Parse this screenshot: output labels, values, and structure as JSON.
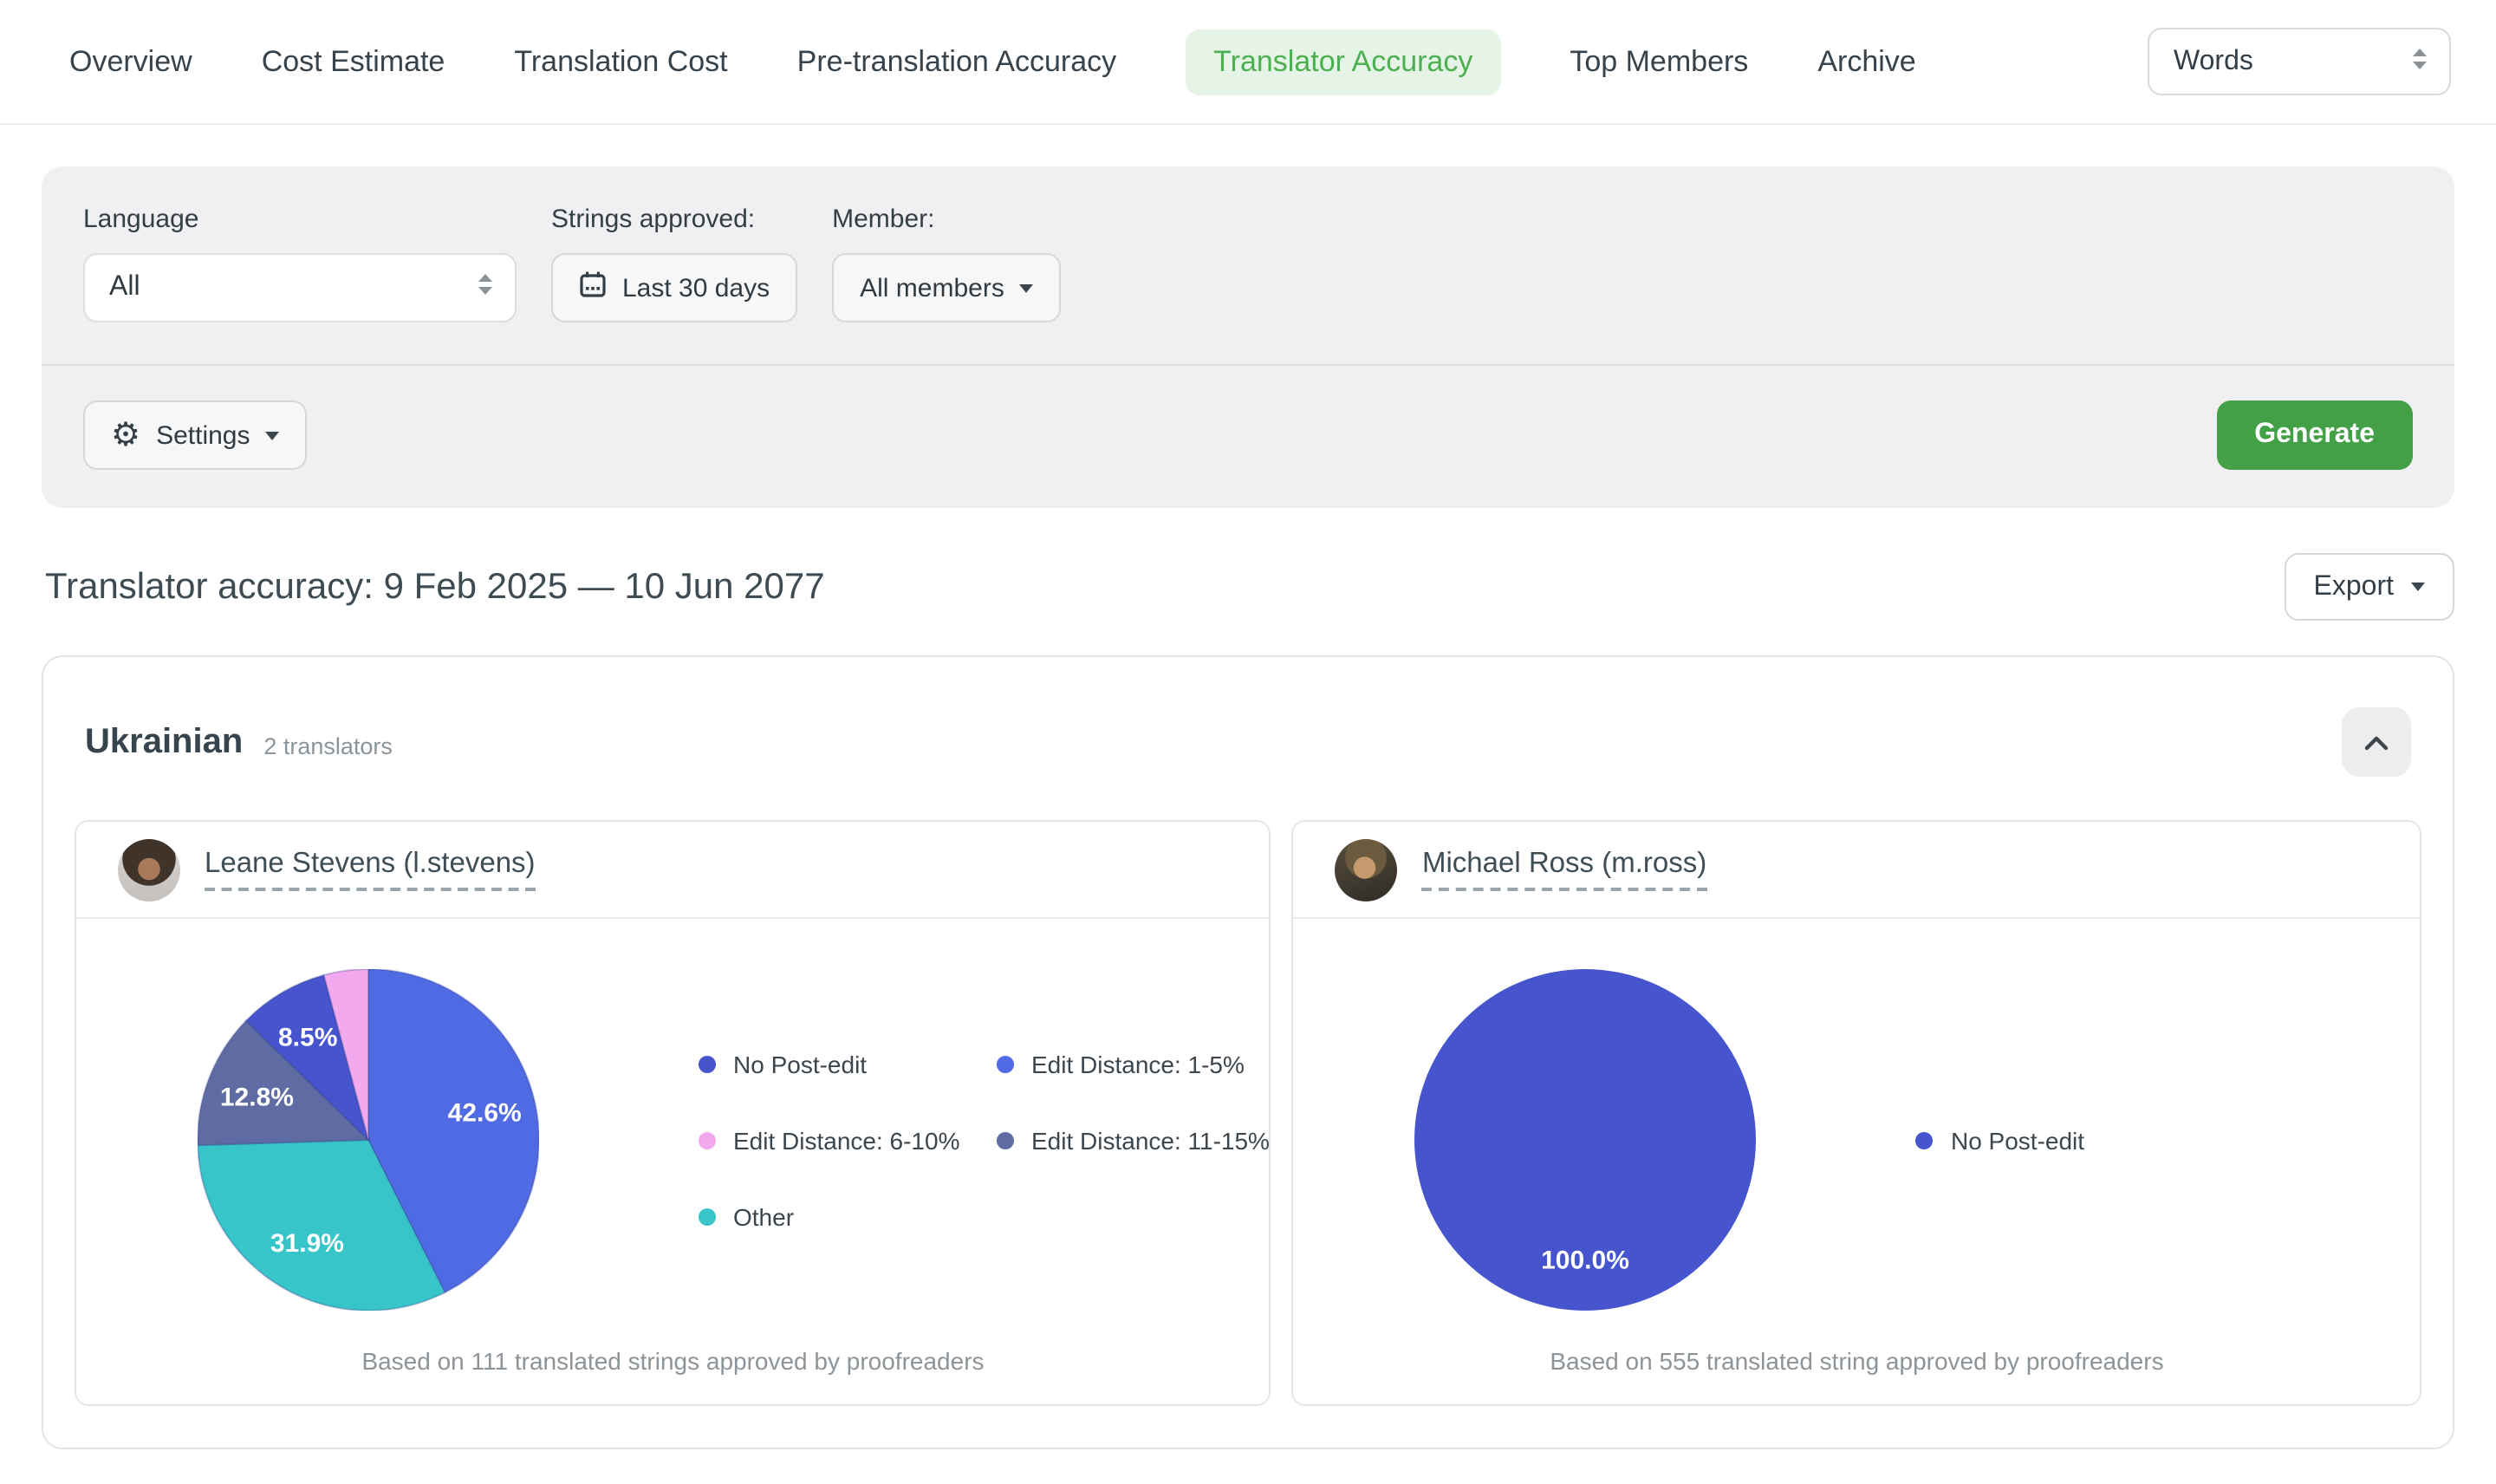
{
  "tabs": [
    {
      "label": "Overview",
      "active": false
    },
    {
      "label": "Cost Estimate",
      "active": false
    },
    {
      "label": "Translation Cost",
      "active": false
    },
    {
      "label": "Pre-translation Accuracy",
      "active": false
    },
    {
      "label": "Translator Accuracy",
      "active": true
    },
    {
      "label": "Top Members",
      "active": false
    },
    {
      "label": "Archive",
      "active": false
    }
  ],
  "unit_select": {
    "value": "Words"
  },
  "filters": {
    "language_label": "Language",
    "language_value": "All",
    "strings_approved_label": "Strings approved:",
    "date_range": "Last 30 days",
    "member_label": "Member:",
    "member_value": "All members",
    "settings_label": "Settings",
    "generate_label": "Generate"
  },
  "report": {
    "title": "Translator accuracy: 9 Feb 2025 — 10 Jun 2077",
    "export_label": "Export"
  },
  "section": {
    "language": "Ukrainian",
    "translators_count": "2 translators"
  },
  "translators": [
    {
      "name": "Leane Stevens (l.stevens)",
      "footnote": "Based on 111 translated strings approved by proofreaders"
    },
    {
      "name": "Michael Ross (m.ross)",
      "footnote": "Based on 555 translated string approved by proofreaders"
    }
  ],
  "icons": {
    "gear": "⚙",
    "caret_down": "▾",
    "select_caret": "⇕",
    "calendar": "▦",
    "chevron_up": "^"
  },
  "colors": {
    "accent_green": "#43A047",
    "active_tab_text": "#4CAF50",
    "active_tab_bg": "#E6F4E7",
    "no_post_edit": "#4654CE",
    "edit_distance_1_5": "#4F6AE3",
    "edit_distance_6_10": "#F2A9EE",
    "edit_distance_11_15": "#5F6CA3",
    "other": "#38C5C9"
  },
  "chart_data": [
    {
      "type": "pie",
      "title": "Leane Stevens (l.stevens)",
      "slices": [
        {
          "label": "Edit Distance: 1-5%",
          "value": 42.6,
          "pct_label": "42.6%",
          "color": "#4F6AE3"
        },
        {
          "label": "Other",
          "value": 31.9,
          "pct_label": "31.9%",
          "color": "#38C5C9"
        },
        {
          "label": "Edit Distance: 11-15%",
          "value": 12.8,
          "pct_label": "12.8%",
          "color": "#5F6CA3"
        },
        {
          "label": "No Post-edit",
          "value": 8.5,
          "pct_label": "8.5%",
          "color": "#4654CE"
        },
        {
          "label": "Edit Distance: 6-10%",
          "value": 4.2,
          "pct_label": null,
          "color": "#F2A9EE"
        }
      ],
      "legend": [
        "No Post-edit",
        "Edit Distance: 1-5%",
        "Edit Distance: 6-10%",
        "Edit Distance: 11-15%",
        "Other"
      ],
      "legend_position": "right",
      "start_angle_deg": 0,
      "direction": "clockwise"
    },
    {
      "type": "pie",
      "title": "Michael Ross (m.ross)",
      "slices": [
        {
          "label": "No Post-edit",
          "value": 100.0,
          "pct_label": "100.0%",
          "color": "#4654CE"
        }
      ],
      "legend": [
        "No Post-edit"
      ],
      "legend_position": "right",
      "start_angle_deg": 0,
      "direction": "clockwise"
    }
  ]
}
